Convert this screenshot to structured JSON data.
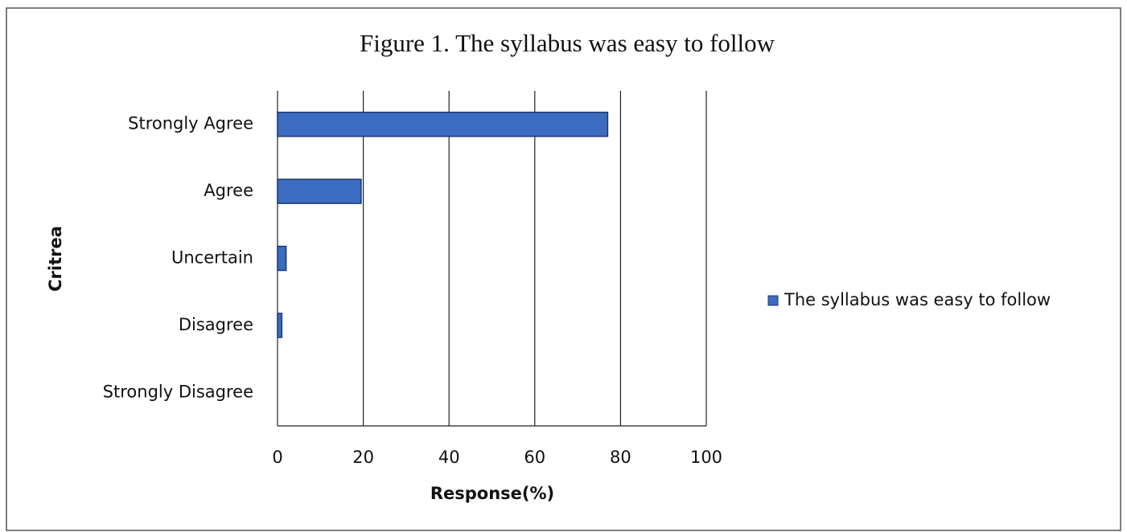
{
  "chart_data": {
    "type": "bar",
    "orientation": "horizontal",
    "title": "Figure 1. The syllabus was easy to follow",
    "x_label": "Response(%)",
    "y_label": "Critrea",
    "categories": [
      "Strongly Agree",
      "Agree",
      "Uncertain",
      "Disagree",
      "Strongly Disagree"
    ],
    "series": [
      {
        "name": "The syllabus was easy to follow",
        "color": "#3b6cc0",
        "values": [
          77,
          19.5,
          2,
          1,
          0
        ]
      }
    ],
    "xlim": [
      0,
      100
    ],
    "xticks": [
      0,
      20,
      40,
      60,
      80,
      100
    ],
    "grid": true,
    "legend": "right"
  }
}
